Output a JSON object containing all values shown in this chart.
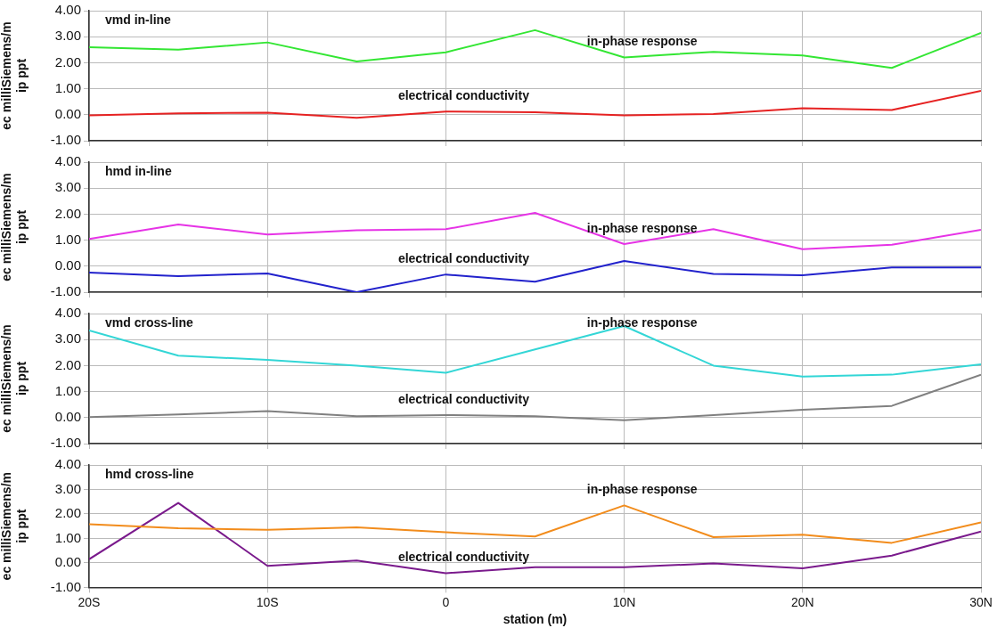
{
  "chart_data": [
    {
      "type": "line",
      "title": "vmd in-line",
      "ylabel": "ec milliSiemens/m\nip ppt",
      "x": [
        -20,
        -15,
        -10,
        -5,
        0,
        5,
        10,
        15,
        20,
        25,
        30
      ],
      "series": [
        {
          "name": "in-phase response",
          "color": "#33e633",
          "values": [
            2.6,
            2.5,
            2.78,
            2.05,
            2.4,
            3.25,
            2.2,
            2.42,
            2.28,
            1.8,
            3.15
          ]
        },
        {
          "name": "electrical conductivity",
          "color": "#e62222",
          "values": [
            -0.02,
            0.05,
            0.08,
            -0.12,
            0.12,
            0.1,
            -0.02,
            0.03,
            0.25,
            0.18,
            0.92
          ]
        }
      ],
      "xlim": [
        -20,
        30
      ],
      "xticks": [
        -20,
        -10,
        0,
        10,
        20,
        30
      ],
      "ylim": [
        -1,
        4
      ],
      "yticks": [
        {
          "value": -1,
          "label": "-1.00"
        },
        {
          "value": 0,
          "label": "0.00"
        },
        {
          "value": 1,
          "label": "1.00"
        },
        {
          "value": 2,
          "label": "2.00"
        },
        {
          "value": 3,
          "label": "3.00"
        },
        {
          "value": 4,
          "label": "4.00"
        }
      ],
      "grid": true,
      "legend": false,
      "tick_labels": "y",
      "marker": "none"
    },
    {
      "type": "line",
      "title": "hmd in-line",
      "ylabel": "ec milliSiemens/m\nip ppt",
      "x": [
        -20,
        -15,
        -10,
        -5,
        0,
        5,
        10,
        15,
        20,
        25,
        30
      ],
      "series": [
        {
          "name": "in-phase response",
          "color": "#e633e6",
          "values": [
            1.05,
            1.6,
            1.22,
            1.38,
            1.42,
            2.05,
            0.85,
            1.42,
            0.65,
            0.82,
            1.4
          ]
        },
        {
          "name": "electrical conductivity",
          "color": "#2222cc",
          "values": [
            -0.25,
            -0.38,
            -0.28,
            -1.0,
            -0.32,
            -0.6,
            0.2,
            -0.3,
            -0.35,
            -0.05,
            -0.05
          ]
        }
      ],
      "xlim": [
        -20,
        30
      ],
      "xticks": [
        -20,
        -10,
        0,
        10,
        20,
        30
      ],
      "ylim": [
        -1,
        4
      ],
      "yticks": [
        {
          "value": -1,
          "label": "-1.00"
        },
        {
          "value": 0,
          "label": "0.00"
        },
        {
          "value": 1,
          "label": "1.00"
        },
        {
          "value": 2,
          "label": "2.00"
        },
        {
          "value": 3,
          "label": "3.00"
        },
        {
          "value": 4,
          "label": "4.00"
        }
      ],
      "grid": true,
      "legend": false,
      "tick_labels": "y",
      "marker": "none"
    },
    {
      "type": "line",
      "title": "vmd cross-line",
      "ylabel": "ec milliSiemens/m\nip ppt",
      "x": [
        -20,
        -15,
        -10,
        -5,
        0,
        5,
        10,
        15,
        20,
        25,
        30
      ],
      "series": [
        {
          "name": "in-phase response",
          "color": "#33d6d6",
          "values": [
            3.35,
            2.38,
            2.22,
            2.0,
            1.72,
            2.62,
            3.52,
            2.0,
            1.58,
            1.65,
            2.05
          ]
        },
        {
          "name": "electrical conductivity",
          "color": "#808080",
          "values": [
            0.02,
            0.12,
            0.25,
            0.05,
            0.1,
            0.05,
            -0.1,
            0.1,
            0.3,
            0.45,
            1.65
          ]
        }
      ],
      "xlim": [
        -20,
        30
      ],
      "xticks": [
        -20,
        -10,
        0,
        10,
        20,
        30
      ],
      "ylim": [
        -1,
        4
      ],
      "yticks": [
        {
          "value": -1,
          "label": "-1.00"
        },
        {
          "value": 0,
          "label": "0.00"
        },
        {
          "value": 1,
          "label": "1.00"
        },
        {
          "value": 2,
          "label": "2.00"
        },
        {
          "value": 3,
          "label": "3.00"
        },
        {
          "value": 4,
          "label": "4.00"
        }
      ],
      "grid": true,
      "legend": false,
      "tick_labels": "y",
      "marker": "none"
    },
    {
      "type": "line",
      "title": "hmd cross-line",
      "xlabel": "station (m)",
      "ylabel": "ec milliSiemens/m\nip ppt",
      "x": [
        -20,
        -15,
        -10,
        -5,
        0,
        5,
        10,
        15,
        20,
        25,
        30
      ],
      "series": [
        {
          "name": "in-phase response",
          "color": "#f28c1c",
          "values": [
            1.58,
            1.42,
            1.35,
            1.45,
            1.25,
            1.08,
            2.35,
            1.05,
            1.15,
            0.82,
            1.65
          ]
        },
        {
          "name": "electrical conductivity",
          "color": "#7a1a8c",
          "values": [
            0.15,
            2.45,
            -0.12,
            0.1,
            -0.42,
            -0.18,
            -0.18,
            -0.02,
            -0.22,
            0.3,
            1.28
          ]
        }
      ],
      "xlim": [
        -20,
        30
      ],
      "xticks": [
        {
          "value": -20,
          "label": "20S"
        },
        {
          "value": -10,
          "label": "10S"
        },
        0,
        {
          "value": 10,
          "label": "10N"
        },
        {
          "value": 20,
          "label": "20N"
        },
        {
          "value": 30,
          "label": "30N"
        }
      ],
      "ylim": [
        -1,
        4
      ],
      "yticks": [
        {
          "value": -1,
          "label": "-1.00"
        },
        {
          "value": 0,
          "label": "0.00"
        },
        {
          "value": 1,
          "label": "1.00"
        },
        {
          "value": 2,
          "label": "2.00"
        },
        {
          "value": 3,
          "label": "3.00"
        },
        {
          "value": 4,
          "label": "4.00"
        }
      ],
      "grid": true,
      "legend": false,
      "marker": "none"
    }
  ]
}
